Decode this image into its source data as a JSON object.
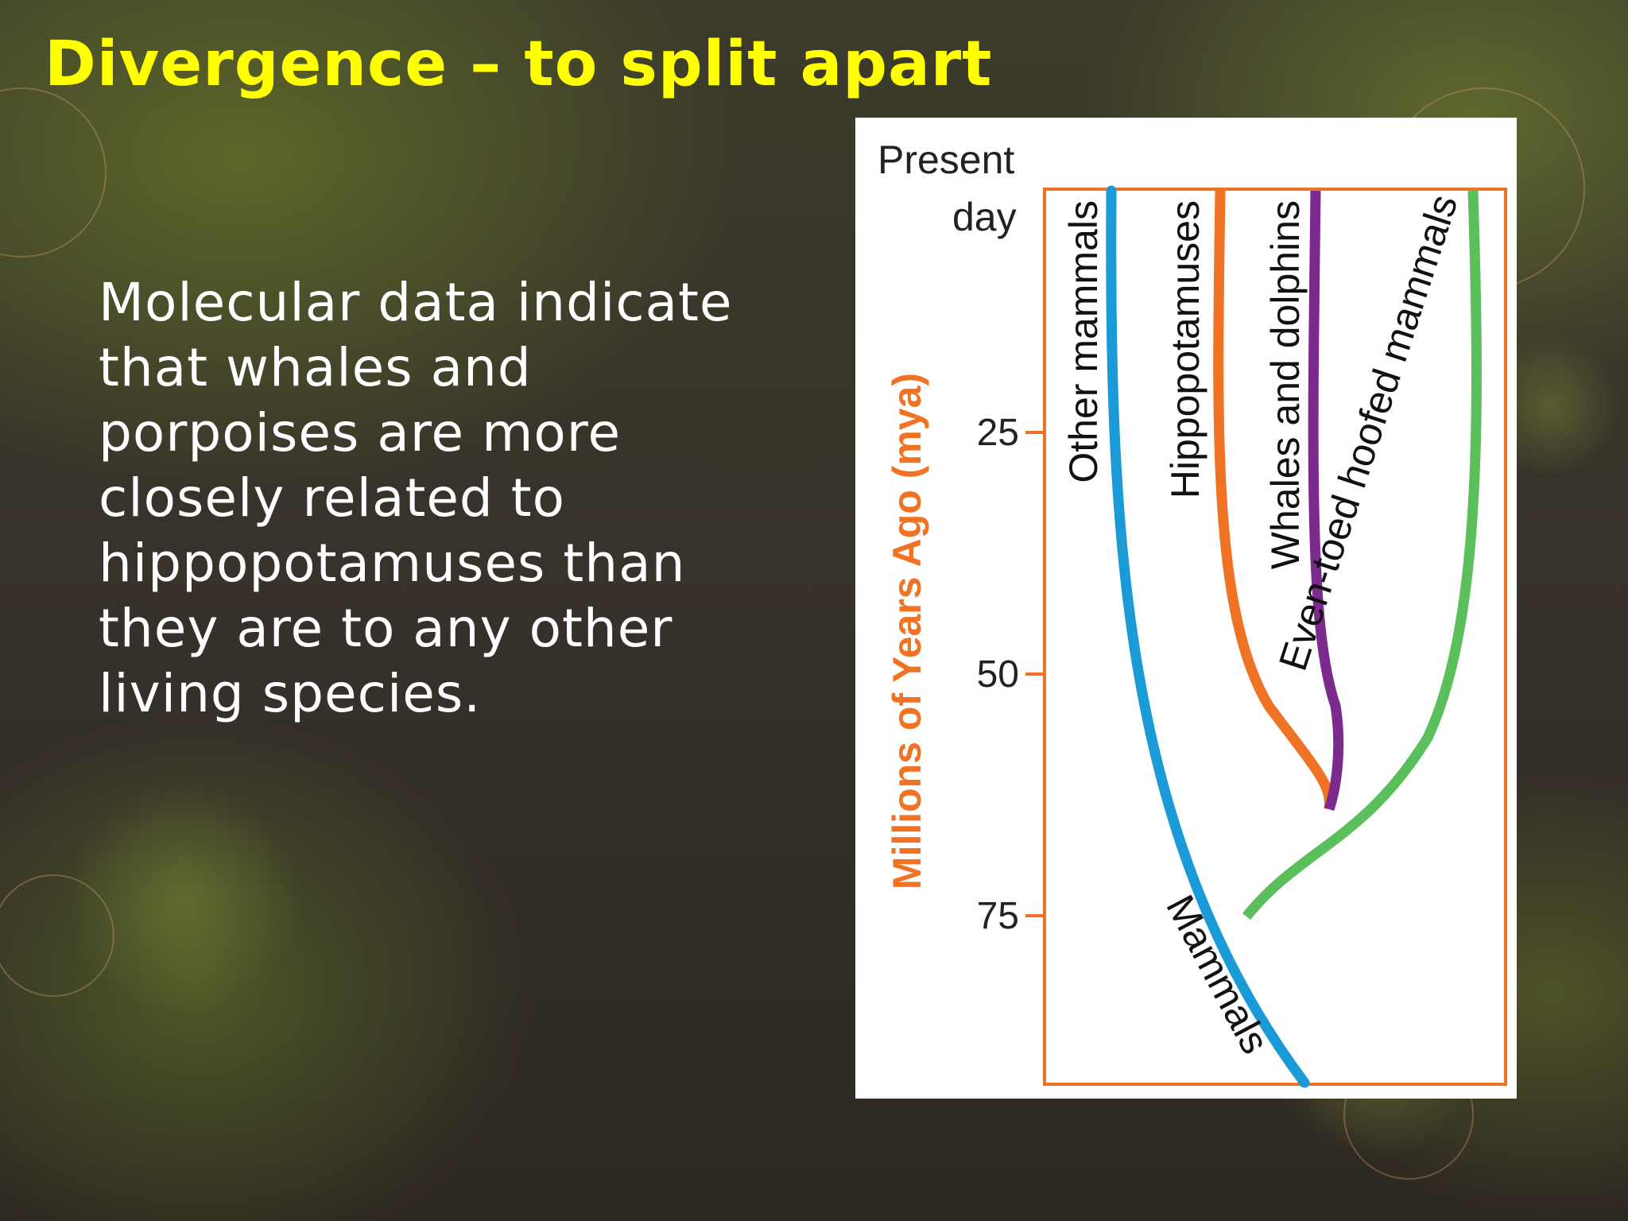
{
  "slide": {
    "title": "Divergence – to split apart",
    "body": "Molecular data indicate that whales and porpoises are more closely related to hippopotamuses than they are to any other living species."
  },
  "figure": {
    "present_line1": "Present",
    "present_line2": "day",
    "y_axis_label": "Millions of Years Ago (mya)",
    "ticks": [
      "25",
      "50",
      "75"
    ],
    "lineages": [
      {
        "name": "Other mammals",
        "color": "#1a9ad6"
      },
      {
        "name": "Hippopotamuses",
        "color": "#f07224"
      },
      {
        "name": "Whales and dolphins",
        "color": "#7b2a8e"
      },
      {
        "name": "Even-toed hoofed mammals",
        "color": "#5bbf5b"
      }
    ],
    "root_label": "Mammals",
    "frame_color": "#f07224"
  }
}
